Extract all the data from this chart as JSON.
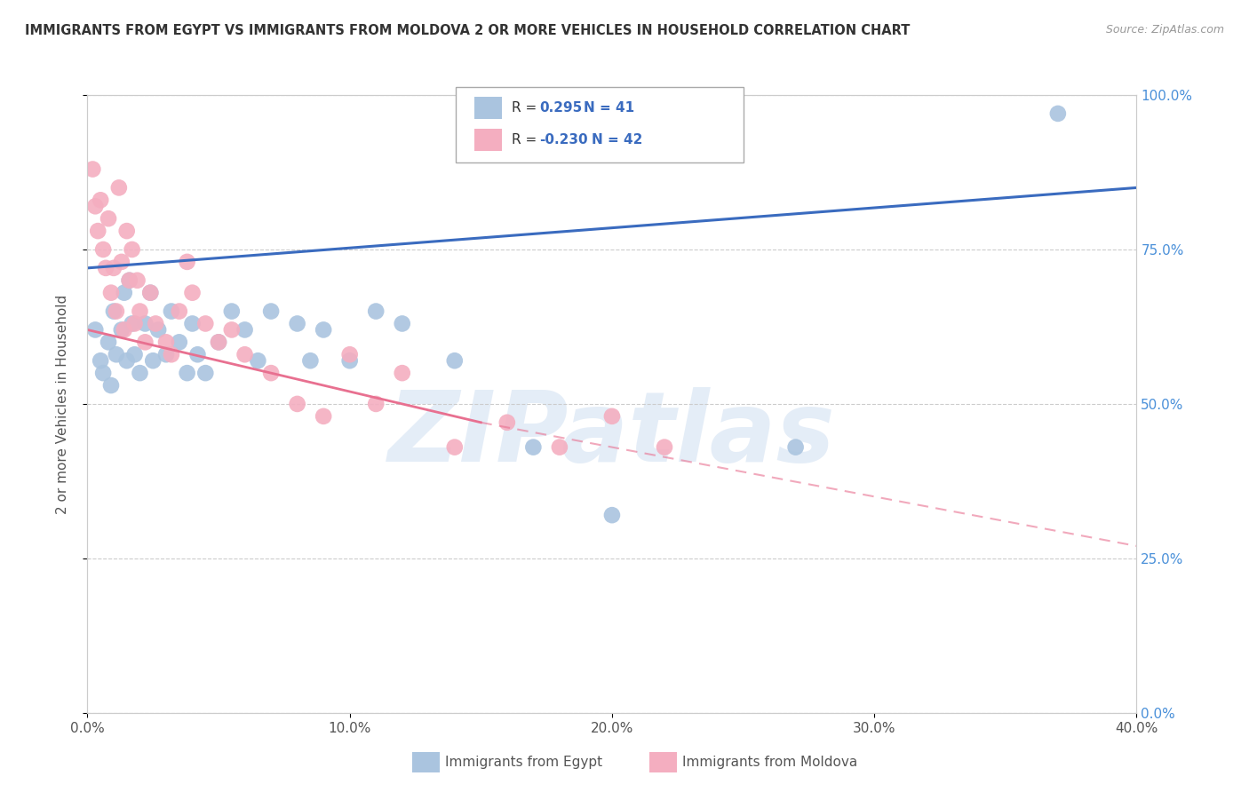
{
  "title": "IMMIGRANTS FROM EGYPT VS IMMIGRANTS FROM MOLDOVA 2 OR MORE VEHICLES IN HOUSEHOLD CORRELATION CHART",
  "source": "Source: ZipAtlas.com",
  "xlabel_egypt": "Immigrants from Egypt",
  "xlabel_moldova": "Immigrants from Moldova",
  "ylabel": "2 or more Vehicles in Household",
  "xlim": [
    0.0,
    40.0
  ],
  "ylim": [
    0.0,
    100.0
  ],
  "xticks": [
    0.0,
    10.0,
    20.0,
    30.0,
    40.0
  ],
  "yticks_left": [],
  "yticks_right": [
    0.0,
    25.0,
    50.0,
    75.0,
    100.0
  ],
  "legend_R_egypt": "0.295",
  "legend_N_egypt": "41",
  "legend_R_moldova": "-0.230",
  "legend_N_moldova": "42",
  "egypt_color": "#aac4df",
  "moldova_color": "#f4aec0",
  "egypt_line_color": "#3a6bbf",
  "moldova_line_color": "#e87090",
  "background_color": "#ffffff",
  "grid_color": "#cccccc",
  "watermark": "ZIPatlas",
  "egypt_dots": [
    [
      0.3,
      62.0
    ],
    [
      0.5,
      57.0
    ],
    [
      0.6,
      55.0
    ],
    [
      0.8,
      60.0
    ],
    [
      0.9,
      53.0
    ],
    [
      1.0,
      65.0
    ],
    [
      1.1,
      58.0
    ],
    [
      1.3,
      62.0
    ],
    [
      1.4,
      68.0
    ],
    [
      1.5,
      57.0
    ],
    [
      1.6,
      70.0
    ],
    [
      1.7,
      63.0
    ],
    [
      1.8,
      58.0
    ],
    [
      2.0,
      55.0
    ],
    [
      2.2,
      63.0
    ],
    [
      2.4,
      68.0
    ],
    [
      2.5,
      57.0
    ],
    [
      2.7,
      62.0
    ],
    [
      3.0,
      58.0
    ],
    [
      3.2,
      65.0
    ],
    [
      3.5,
      60.0
    ],
    [
      3.8,
      55.0
    ],
    [
      4.0,
      63.0
    ],
    [
      4.2,
      58.0
    ],
    [
      4.5,
      55.0
    ],
    [
      5.0,
      60.0
    ],
    [
      5.5,
      65.0
    ],
    [
      6.0,
      62.0
    ],
    [
      6.5,
      57.0
    ],
    [
      7.0,
      65.0
    ],
    [
      8.0,
      63.0
    ],
    [
      8.5,
      57.0
    ],
    [
      9.0,
      62.0
    ],
    [
      10.0,
      57.0
    ],
    [
      11.0,
      65.0
    ],
    [
      12.0,
      63.0
    ],
    [
      14.0,
      57.0
    ],
    [
      17.0,
      43.0
    ],
    [
      20.0,
      32.0
    ],
    [
      27.0,
      43.0
    ],
    [
      37.0,
      97.0
    ]
  ],
  "moldova_dots": [
    [
      0.2,
      88.0
    ],
    [
      0.3,
      82.0
    ],
    [
      0.4,
      78.0
    ],
    [
      0.5,
      83.0
    ],
    [
      0.6,
      75.0
    ],
    [
      0.7,
      72.0
    ],
    [
      0.8,
      80.0
    ],
    [
      0.9,
      68.0
    ],
    [
      1.0,
      72.0
    ],
    [
      1.1,
      65.0
    ],
    [
      1.2,
      85.0
    ],
    [
      1.3,
      73.0
    ],
    [
      1.4,
      62.0
    ],
    [
      1.5,
      78.0
    ],
    [
      1.6,
      70.0
    ],
    [
      1.7,
      75.0
    ],
    [
      1.8,
      63.0
    ],
    [
      1.9,
      70.0
    ],
    [
      2.0,
      65.0
    ],
    [
      2.2,
      60.0
    ],
    [
      2.4,
      68.0
    ],
    [
      2.6,
      63.0
    ],
    [
      3.0,
      60.0
    ],
    [
      3.2,
      58.0
    ],
    [
      3.5,
      65.0
    ],
    [
      3.8,
      73.0
    ],
    [
      4.0,
      68.0
    ],
    [
      4.5,
      63.0
    ],
    [
      5.0,
      60.0
    ],
    [
      5.5,
      62.0
    ],
    [
      6.0,
      58.0
    ],
    [
      7.0,
      55.0
    ],
    [
      8.0,
      50.0
    ],
    [
      9.0,
      48.0
    ],
    [
      10.0,
      58.0
    ],
    [
      11.0,
      50.0
    ],
    [
      12.0,
      55.0
    ],
    [
      14.0,
      43.0
    ],
    [
      16.0,
      47.0
    ],
    [
      18.0,
      43.0
    ],
    [
      20.0,
      48.0
    ],
    [
      22.0,
      43.0
    ]
  ],
  "egypt_line": {
    "x0": 0.0,
    "y0": 72.0,
    "x1": 40.0,
    "y1": 85.0
  },
  "moldova_line_solid": {
    "x0": 0.0,
    "y0": 62.0,
    "x1": 15.0,
    "y1": 47.0
  },
  "moldova_line_dash": {
    "x0": 15.0,
    "y0": 47.0,
    "x1": 40.0,
    "y1": 27.0
  }
}
